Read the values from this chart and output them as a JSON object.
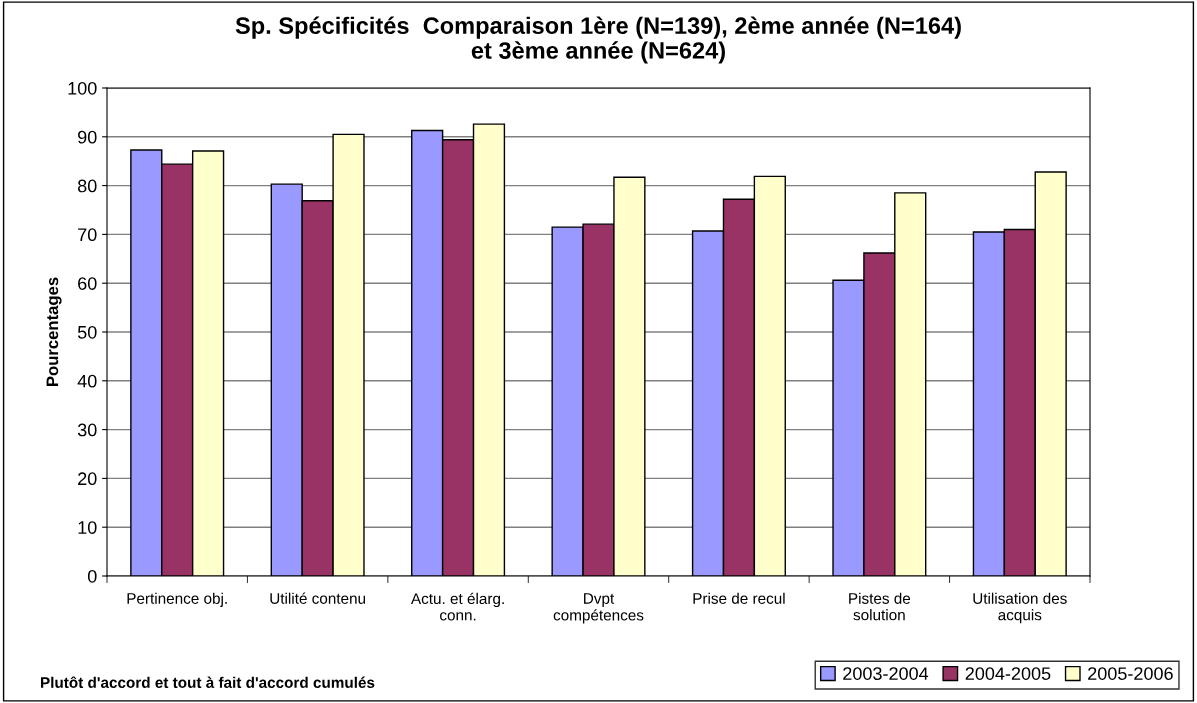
{
  "chart_data": {
    "type": "bar",
    "title": "Sp. Spécificités  Comparaison 1ère (N=139), 2ème année (N=164)\net 3ème année (N=624)",
    "ylabel": "Pourcentages",
    "categories": [
      "Pertinence obj.",
      "Utilité contenu",
      "Actu. et élarg.\nconn.",
      "Dvpt\ncompétences",
      "Prise de recul",
      "Pistes de\nsolution",
      "Utilisation des\nacquis"
    ],
    "series": [
      {
        "name": "2003-2004",
        "color": "#9999ff",
        "values": [
          87.3,
          80.3,
          91.3,
          71.5,
          70.7,
          60.6,
          70.5
        ]
      },
      {
        "name": "2004-2005",
        "color": "#993366",
        "values": [
          84.4,
          76.9,
          89.4,
          72.1,
          77.2,
          66.2,
          71.0
        ]
      },
      {
        "name": "2005-2006",
        "color": "#ffffcc",
        "values": [
          87.1,
          90.5,
          92.6,
          81.7,
          81.9,
          78.5,
          82.8
        ]
      }
    ],
    "ylim": [
      0,
      100
    ],
    "yticks": [
      0,
      10,
      20,
      30,
      40,
      50,
      60,
      70,
      80,
      90,
      100
    ],
    "grid": "y",
    "legend": "bottom right",
    "annotations": [
      "Plutôt d'accord et tout à fait d'accord cumulés"
    ]
  }
}
